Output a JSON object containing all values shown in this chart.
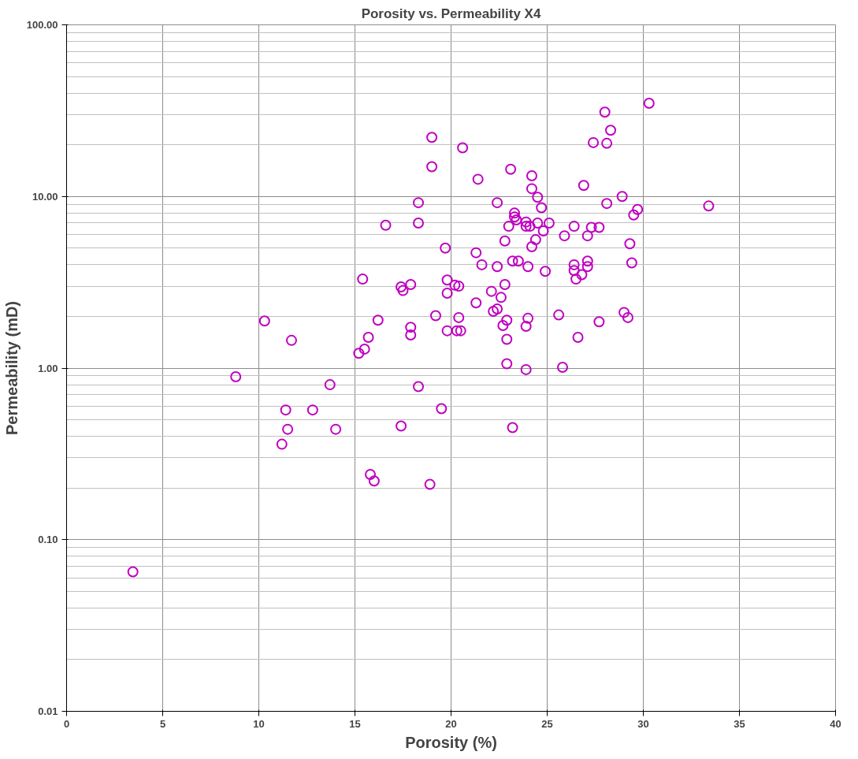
{
  "chart_data": {
    "type": "scatter",
    "title": "Porosity vs. Permeability X4",
    "xlabel": "Porosity (%)",
    "ylabel": "Permeability (mD)",
    "log": "y",
    "grid": true,
    "marker": "circle",
    "xlim": [
      0,
      40
    ],
    "xticks": [
      0,
      5,
      10,
      15,
      20,
      25,
      30,
      35,
      40
    ],
    "ylim": [
      0.01,
      100
    ],
    "yticks": [
      {
        "value": 0.01,
        "label": "0.01"
      },
      {
        "value": 0.1,
        "label": "0.10"
      },
      {
        "value": 1,
        "label": "1.00"
      },
      {
        "value": 10,
        "label": "10.00"
      },
      {
        "value": 100,
        "label": "100.00"
      }
    ],
    "series": [
      {
        "color": "#c000c0",
        "x": [
          3.45,
          8.8,
          10.3,
          11.7,
          11.4,
          12.8,
          11.5,
          11.2,
          13.7,
          14.0,
          15.2,
          15.5,
          15.7,
          16.2,
          15.4,
          15.8,
          16.0,
          16.6,
          18.3,
          18.3,
          19.0,
          19.0,
          20.6,
          21.4,
          23.1,
          24.2,
          24.2,
          24.5,
          24.7,
          22.4,
          26.9,
          23.3,
          23.3,
          23.4,
          23.0,
          23.9,
          23.9,
          24.1,
          24.5,
          25.1,
          24.8,
          26.4,
          25.9,
          27.1,
          22.8,
          24.4,
          24.2,
          19.7,
          21.3,
          21.6,
          22.4,
          23.2,
          23.5,
          24.0,
          24.9,
          26.4,
          26.4,
          26.5,
          26.8,
          27.1,
          27.1,
          17.4,
          17.5,
          17.9,
          19.8,
          19.8,
          20.2,
          20.4,
          22.1,
          22.6,
          22.8,
          21.3,
          22.4,
          22.2,
          19.2,
          20.4,
          22.9,
          22.7,
          24.0,
          23.9,
          25.6,
          26.6,
          22.9,
          17.9,
          17.9,
          19.8,
          20.3,
          20.5,
          22.9,
          23.9,
          25.8,
          18.3,
          19.5,
          17.4,
          23.2,
          18.9,
          30.3,
          28.0,
          28.3,
          27.4,
          28.1,
          28.9,
          28.1,
          33.4,
          29.7,
          29.5,
          27.3,
          27.7,
          29.3,
          29.4,
          29.0,
          29.2,
          27.7
        ],
        "values": [
          0.065,
          0.89,
          1.88,
          1.45,
          0.57,
          0.57,
          0.44,
          0.36,
          0.8,
          0.44,
          1.22,
          1.29,
          1.51,
          1.9,
          3.3,
          0.24,
          0.22,
          6.8,
          9.2,
          7.0,
          22.1,
          14.9,
          19.2,
          12.6,
          14.4,
          13.2,
          11.1,
          9.9,
          8.6,
          9.2,
          11.6,
          8.0,
          7.6,
          7.3,
          6.7,
          7.1,
          6.7,
          6.7,
          7.0,
          7.0,
          6.3,
          6.7,
          5.9,
          5.9,
          5.5,
          5.6,
          5.1,
          5.0,
          4.7,
          4.0,
          3.9,
          4.2,
          4.2,
          3.9,
          3.66,
          4.0,
          3.7,
          3.3,
          3.5,
          4.2,
          3.9,
          2.97,
          2.83,
          3.07,
          3.26,
          2.73,
          3.04,
          3.0,
          2.8,
          2.58,
          3.07,
          2.4,
          2.21,
          2.14,
          2.02,
          1.97,
          1.9,
          1.77,
          1.95,
          1.75,
          2.04,
          1.51,
          1.47,
          1.73,
          1.56,
          1.65,
          1.65,
          1.65,
          1.06,
          0.98,
          1.01,
          0.78,
          0.58,
          0.46,
          0.45,
          0.21,
          34.9,
          31,
          24.3,
          20.6,
          20.4,
          10.0,
          9.1,
          8.8,
          8.4,
          7.8,
          6.6,
          6.6,
          5.3,
          4.1,
          2.11,
          1.97,
          1.86
        ]
      }
    ]
  }
}
